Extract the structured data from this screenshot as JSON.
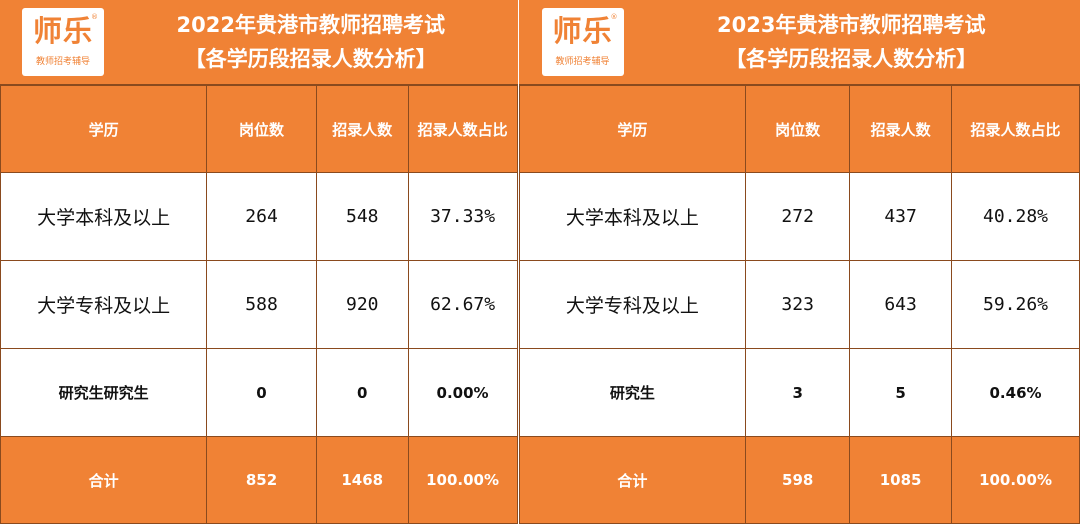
{
  "colors": {
    "accent": "#F08235",
    "border": "#8a4a1e"
  },
  "logo": {
    "name": "师乐",
    "slogan": "教师招考辅导",
    "reg": "®"
  },
  "panels": [
    {
      "title": "2022年贵港市教师招聘考试",
      "subtitle": "【各学历段招录人数分析】",
      "headers": [
        "学历",
        "岗位数",
        "招录人数",
        "招录人数占比"
      ],
      "rows": [
        [
          "大学本科及以上",
          "264",
          "548",
          "37.33%"
        ],
        [
          "大学专科及以上",
          "588",
          "920",
          "62.67%"
        ],
        [
          "研究生研究生",
          "0",
          "0",
          "0.00%"
        ]
      ],
      "total": [
        "合计",
        "852",
        "1468",
        "100.00%"
      ]
    },
    {
      "title": "2023年贵港市教师招聘考试",
      "subtitle": "【各学历段招录人数分析】",
      "headers": [
        "学历",
        "岗位数",
        "招录人数",
        "招录人数占比"
      ],
      "rows": [
        [
          "大学本科及以上",
          "272",
          "437",
          "40.28%"
        ],
        [
          "大学专科及以上",
          "323",
          "643",
          "59.26%"
        ],
        [
          "研究生",
          "3",
          "5",
          "0.46%"
        ]
      ],
      "total": [
        "合计",
        "598",
        "1085",
        "100.00%"
      ]
    }
  ]
}
